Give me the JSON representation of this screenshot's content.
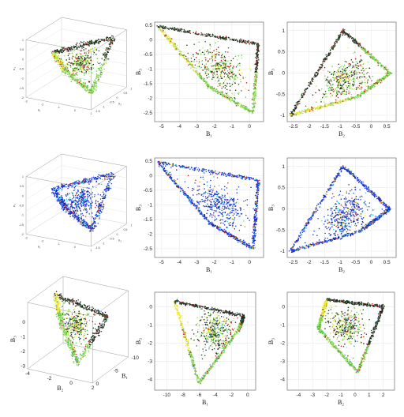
{
  "figure": {
    "panels": 9,
    "layout": "3x3"
  },
  "chart_data": [
    {
      "id": "r1c1",
      "type": "scatter3d",
      "color_scheme": "green-black-red-yellow",
      "xlabel": "n₁",
      "ylabel": "n₂",
      "zlabel": "n₃",
      "xticks": [
        "-3",
        "-2",
        "-1",
        "0",
        "1"
      ],
      "yticks": [
        "-1.5",
        "-1",
        "-0.5",
        "0",
        "0.5",
        "1"
      ],
      "zticks": [
        "1",
        "0.5",
        "0",
        "-0.5",
        "-1",
        "-1.5",
        "-2"
      ],
      "grid": true
    },
    {
      "id": "r1c2",
      "type": "scatter",
      "color_scheme": "green-black-red-yellow",
      "xlabel": "B₁",
      "ylabel": "B₃",
      "xlim": [
        -5.4,
        0.8
      ],
      "ylim": [
        -2.8,
        0.6
      ],
      "xticks": [
        "-5",
        "-4",
        "-3",
        "-2",
        "-1",
        "0"
      ],
      "yticks": [
        "0.5",
        "0",
        "-0.5",
        "-1",
        "-1.5",
        "-2",
        "-2.5"
      ],
      "grid": true,
      "shape": [
        [
          -5.2,
          0.45
        ],
        [
          0.5,
          -0.15
        ],
        [
          0.2,
          -2.5
        ],
        [
          -2.3,
          -1.6
        ]
      ]
    },
    {
      "id": "r1c3",
      "type": "scatter",
      "color_scheme": "green-black-red-yellow",
      "xlabel": "B₂",
      "ylabel": "B₃",
      "xlim": [
        -2.7,
        0.8
      ],
      "ylim": [
        -1.15,
        1.2
      ],
      "xticks": [
        "-2.5",
        "-2",
        "-1.5",
        "-1",
        "-0.5",
        "0",
        "0.5"
      ],
      "yticks": [
        "1",
        "0.5",
        "0",
        "-0.5",
        "-1"
      ],
      "grid": true,
      "shape": [
        [
          -2.6,
          -1.0
        ],
        [
          -0.9,
          1.0
        ],
        [
          0.6,
          0.0
        ],
        [
          -0.4,
          -0.55
        ]
      ]
    },
    {
      "id": "r2c1",
      "type": "scatter3d",
      "color_scheme": "blue-cyan-yellow-red",
      "xlabel": "n₁",
      "ylabel": "n₂",
      "zlabel": "n₃",
      "xticks": [
        "-3",
        "-2",
        "-1",
        "0",
        "1"
      ],
      "yticks": [
        "-1.5",
        "-1",
        "-0.5",
        "0",
        "0.5",
        "1"
      ],
      "zticks": [
        "1",
        "0.5",
        "0",
        "-0.5",
        "-1",
        "-1.5",
        "-2"
      ],
      "grid": true
    },
    {
      "id": "r2c2",
      "type": "scatter",
      "color_scheme": "blue-cyan-yellow-red",
      "xlabel": "B₁",
      "ylabel": "B₃",
      "xlim": [
        -5.4,
        0.8
      ],
      "ylim": [
        -2.8,
        0.6
      ],
      "xticks": [
        "-5",
        "-4",
        "-3",
        "-2",
        "-1",
        "0"
      ],
      "yticks": [
        "0.5",
        "0",
        "-0.5",
        "-1",
        "-1.5",
        "-2",
        "-2.5"
      ],
      "grid": true,
      "shape": [
        [
          -5.2,
          0.45
        ],
        [
          0.5,
          -0.15
        ],
        [
          0.2,
          -2.5
        ],
        [
          -2.3,
          -1.6
        ]
      ]
    },
    {
      "id": "r2c3",
      "type": "scatter",
      "color_scheme": "blue-cyan-yellow-red",
      "xlabel": "B₂",
      "ylabel": "B₃",
      "xlim": [
        -2.7,
        0.8
      ],
      "ylim": [
        -1.15,
        1.2
      ],
      "xticks": [
        "-2.5",
        "-2",
        "-1.5",
        "-1",
        "-0.5",
        "0",
        "0.5"
      ],
      "yticks": [
        "1",
        "0.5",
        "0",
        "-0.5",
        "-1"
      ],
      "grid": true,
      "shape": [
        [
          -2.6,
          -1.0
        ],
        [
          -0.9,
          1.0
        ],
        [
          0.6,
          0.0
        ],
        [
          -0.4,
          -0.55
        ]
      ]
    },
    {
      "id": "r3c1",
      "type": "scatter3d",
      "color_scheme": "green-black-red-yellow-blue",
      "xlabel": "B₂",
      "ylabel": "B₁",
      "zlabel": "B₃",
      "xticks": [
        "-4",
        "-2",
        "0",
        "2"
      ],
      "yticks": [
        "-10",
        "-5",
        "0"
      ],
      "zticks": [
        "0",
        "-1",
        "-2",
        "-3"
      ],
      "grid": false
    },
    {
      "id": "r3c2",
      "type": "scatter",
      "color_scheme": "green-black-red-yellow-blue",
      "xlabel": "B₁",
      "ylabel": "B₃",
      "xlim": [
        -11.5,
        1.0
      ],
      "ylim": [
        -4.6,
        0.8
      ],
      "xticks": [
        "-10",
        "-8",
        "-6",
        "-4",
        "-2",
        "0"
      ],
      "yticks": [
        "0",
        "-1",
        "-2",
        "-3",
        "-4"
      ],
      "grid": true,
      "shape": [
        [
          -9.0,
          0.3
        ],
        [
          -0.5,
          -0.5
        ],
        [
          -1.0,
          -1.2
        ],
        [
          -6.0,
          -4.2
        ]
      ]
    },
    {
      "id": "r3c3",
      "type": "scatter",
      "color_scheme": "green-black-red-yellow-blue",
      "xlabel": "B₂",
      "ylabel": "B₃",
      "xlim": [
        -4.8,
        2.8
      ],
      "ylim": [
        -4.6,
        0.8
      ],
      "xticks": [
        "-4",
        "-3",
        "-2",
        "-1",
        "0",
        "1",
        "2"
      ],
      "yticks": [
        "0",
        "-1",
        "-2",
        "-3",
        "-4"
      ],
      "grid": true,
      "shape": [
        [
          -2.0,
          0.4
        ],
        [
          2.0,
          0.0
        ],
        [
          0.2,
          -3.6
        ],
        [
          -2.6,
          -1.2
        ]
      ]
    }
  ],
  "colors": {
    "green": "#5fc83f",
    "lightgreen": "#a8e06a",
    "black": "#1c1c1c",
    "darkgreen": "#264d22",
    "red": "#c81e1e",
    "yellow": "#f0ea28",
    "blue": "#1f3fe0",
    "darkblue": "#0e1fae",
    "cyan": "#2fd3e8",
    "orange": "#f08a1e",
    "steelblue": "#4a8fd8"
  }
}
